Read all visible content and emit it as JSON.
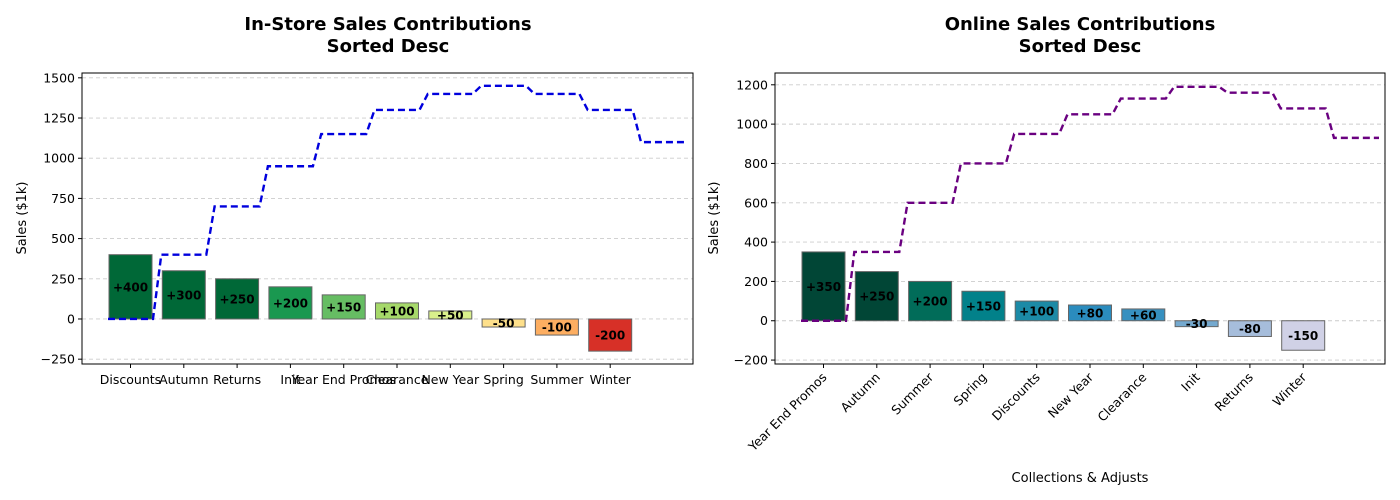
{
  "chart_data": [
    {
      "type": "bar",
      "title_line1": "In-Store Sales Contributions",
      "title_line2": "Sorted Desc",
      "xlabel": "",
      "ylabel": "Sales ($1k)",
      "ylim": [
        -280,
        1530
      ],
      "yticks": [
        -250,
        0,
        250,
        500,
        750,
        1000,
        1250,
        1500
      ],
      "grid": true,
      "rotate_xticks": false,
      "categories": [
        "Discounts",
        "Autumn",
        "Returns",
        "Init",
        "Year End Promos",
        "Clearance",
        "New Year",
        "Spring",
        "Summer",
        "Winter"
      ],
      "values": [
        400,
        300,
        250,
        200,
        150,
        100,
        50,
        -50,
        -100,
        -200
      ],
      "bar_labels": [
        "+400",
        "+300",
        "+250",
        "+200",
        "+150",
        "+100",
        "+50",
        "-50",
        "-100",
        "-200"
      ],
      "bar_colors": [
        "#006837",
        "#006837",
        "#006837",
        "#1a9850",
        "#66bd63",
        "#a6d96a",
        "#d9ef8b",
        "#fee08b",
        "#fdae61",
        "#d73027"
      ],
      "cumulative": [
        0,
        400,
        700,
        950,
        1150,
        1300,
        1400,
        1450,
        1400,
        1300,
        1100
      ],
      "line_color": "#0000dd"
    },
    {
      "type": "bar",
      "title_line1": "Online Sales Contributions",
      "title_line2": "Sorted Desc",
      "xlabel": "Collections & Adjusts",
      "ylabel": "Sales ($1k)",
      "ylim": [
        -220,
        1260
      ],
      "yticks": [
        -200,
        0,
        200,
        400,
        600,
        800,
        1000,
        1200
      ],
      "grid": true,
      "rotate_xticks": true,
      "categories": [
        "Year End Promos",
        "Autumn",
        "Summer",
        "Spring",
        "Discounts",
        "New Year",
        "Clearance",
        "Init",
        "Returns",
        "Winter"
      ],
      "values": [
        350,
        250,
        200,
        150,
        100,
        80,
        60,
        -30,
        -80,
        -150
      ],
      "bar_labels": [
        "+350",
        "+250",
        "+200",
        "+150",
        "+100",
        "+80",
        "+60",
        "-30",
        "-80",
        "-150"
      ],
      "bar_colors": [
        "#014636",
        "#014636",
        "#016c59",
        "#02818a",
        "#1c8aa6",
        "#2b8cbe",
        "#3690c0",
        "#74a9cf",
        "#a6bddb",
        "#d0d1e6"
      ],
      "cumulative": [
        0,
        350,
        600,
        800,
        950,
        1050,
        1130,
        1190,
        1160,
        1080,
        930
      ],
      "line_color": "#6a0080"
    }
  ]
}
